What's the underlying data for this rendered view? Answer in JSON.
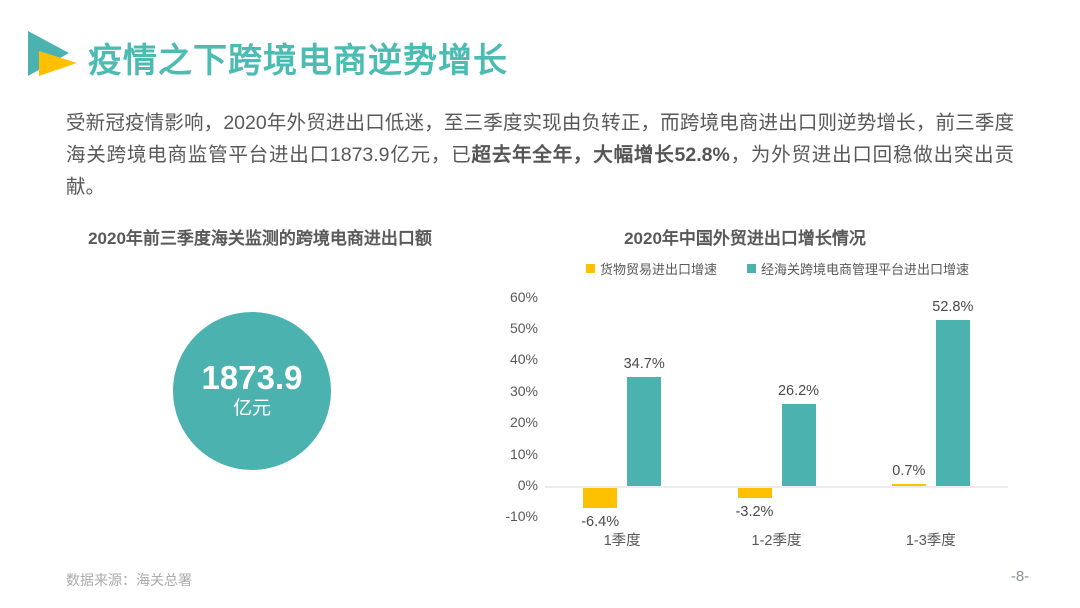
{
  "slide": {
    "title": "疫情之下跨境电商逆势增长",
    "paragraph": {
      "part1": "受新冠疫情影响，2020年外贸进出口低迷，至三季度实现由负转正，而跨境电商进出口则逆势增长，前三季度海关跨境电商监管平台进出口1873.9亿元，已",
      "bold": "超去年全年，大幅增长52.8%",
      "part2": "，为外贸进出口回稳做出突出贡献。"
    },
    "footer": {
      "source": "数据来源：海关总署",
      "page": "-8-"
    }
  },
  "left_chart": {
    "title": "2020年前三季度海关监测的跨境电商进出口额",
    "value": "1873.9",
    "unit": "亿元"
  },
  "chart_data": {
    "type": "bar",
    "title": "2020年中国外贸进出口增长情况",
    "categories": [
      "1季度",
      "1-2季度",
      "1-3季度"
    ],
    "series": [
      {
        "name": "货物贸易进出口增速",
        "color": "#FFC000",
        "values": [
          -6.4,
          -3.2,
          0.7
        ]
      },
      {
        "name": "经海关跨境电商管理平台进出口增速",
        "color": "#4BB2B0",
        "values": [
          34.7,
          26.2,
          52.8
        ]
      }
    ],
    "ylabel": "",
    "xlabel": "",
    "ylim": [
      -10,
      60
    ],
    "y_tick_step": 10,
    "y_tick_labels": [
      "60%",
      "50%",
      "40%",
      "30%",
      "20%",
      "10%",
      "0%",
      "-10%"
    ],
    "data_labels": [
      [
        "-6.4%",
        "-3.2%",
        "0.7%"
      ],
      [
        "34.7%",
        "26.2%",
        "52.8%"
      ]
    ],
    "legend_position": "top",
    "grid": false
  },
  "colors": {
    "accent_teal": "#4BB2B0",
    "accent_teal_title": "#4CBCB3",
    "accent_yellow": "#FFC000",
    "text_dark": "#595959",
    "text_source": "#ABABAB",
    "axis_line": "#ECECEC"
  }
}
